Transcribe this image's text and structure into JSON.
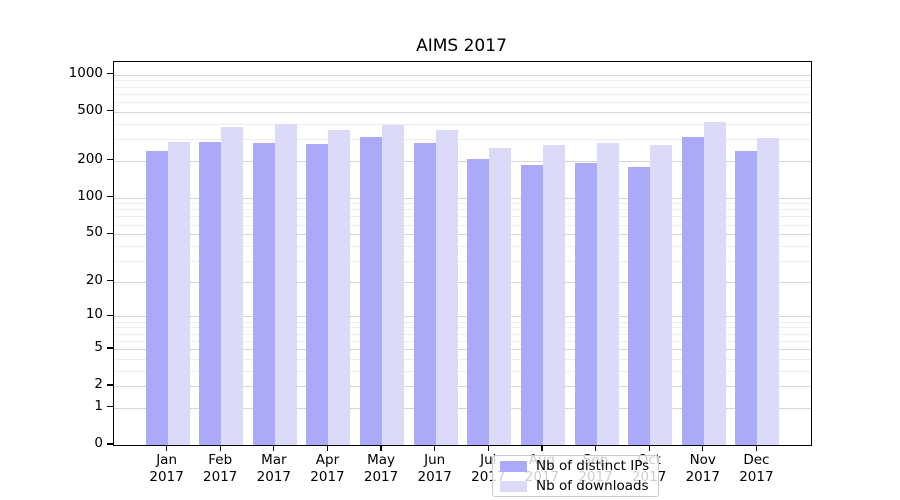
{
  "chart_data": {
    "type": "bar",
    "title": "AIMS 2017",
    "categories": [
      "Jan 2017",
      "Feb 2017",
      "Mar 2017",
      "Apr 2017",
      "May 2017",
      "Jun 2017",
      "Jul 2017",
      "Aug 2017",
      "Sep 2017",
      "Oct 2017",
      "Nov 2017",
      "Dec 2017"
    ],
    "series": [
      {
        "name": "Nb of distinct IPs",
        "color": "#aaaaf8",
        "values": [
          240,
          286,
          281,
          275,
          310,
          277,
          207,
          186,
          193,
          178,
          313,
          238
        ]
      },
      {
        "name": "Nb of downloads",
        "color": "#dbdbf9",
        "values": [
          286,
          374,
          396,
          357,
          387,
          358,
          254,
          268,
          280,
          270,
          410,
          307
        ]
      }
    ],
    "xlabel": "",
    "ylabel": "",
    "yscale": "log1p",
    "ylim": [
      0,
      1265
    ],
    "yticks": [
      1000,
      500,
      200,
      100,
      50,
      20,
      10,
      5,
      2,
      1,
      0
    ],
    "minor_grid_values": [
      3,
      4,
      6,
      7,
      8,
      9,
      30,
      40,
      60,
      70,
      80,
      90,
      300,
      400,
      600,
      700,
      800,
      900
    ],
    "grid": "both",
    "legend_position": "lower center"
  }
}
